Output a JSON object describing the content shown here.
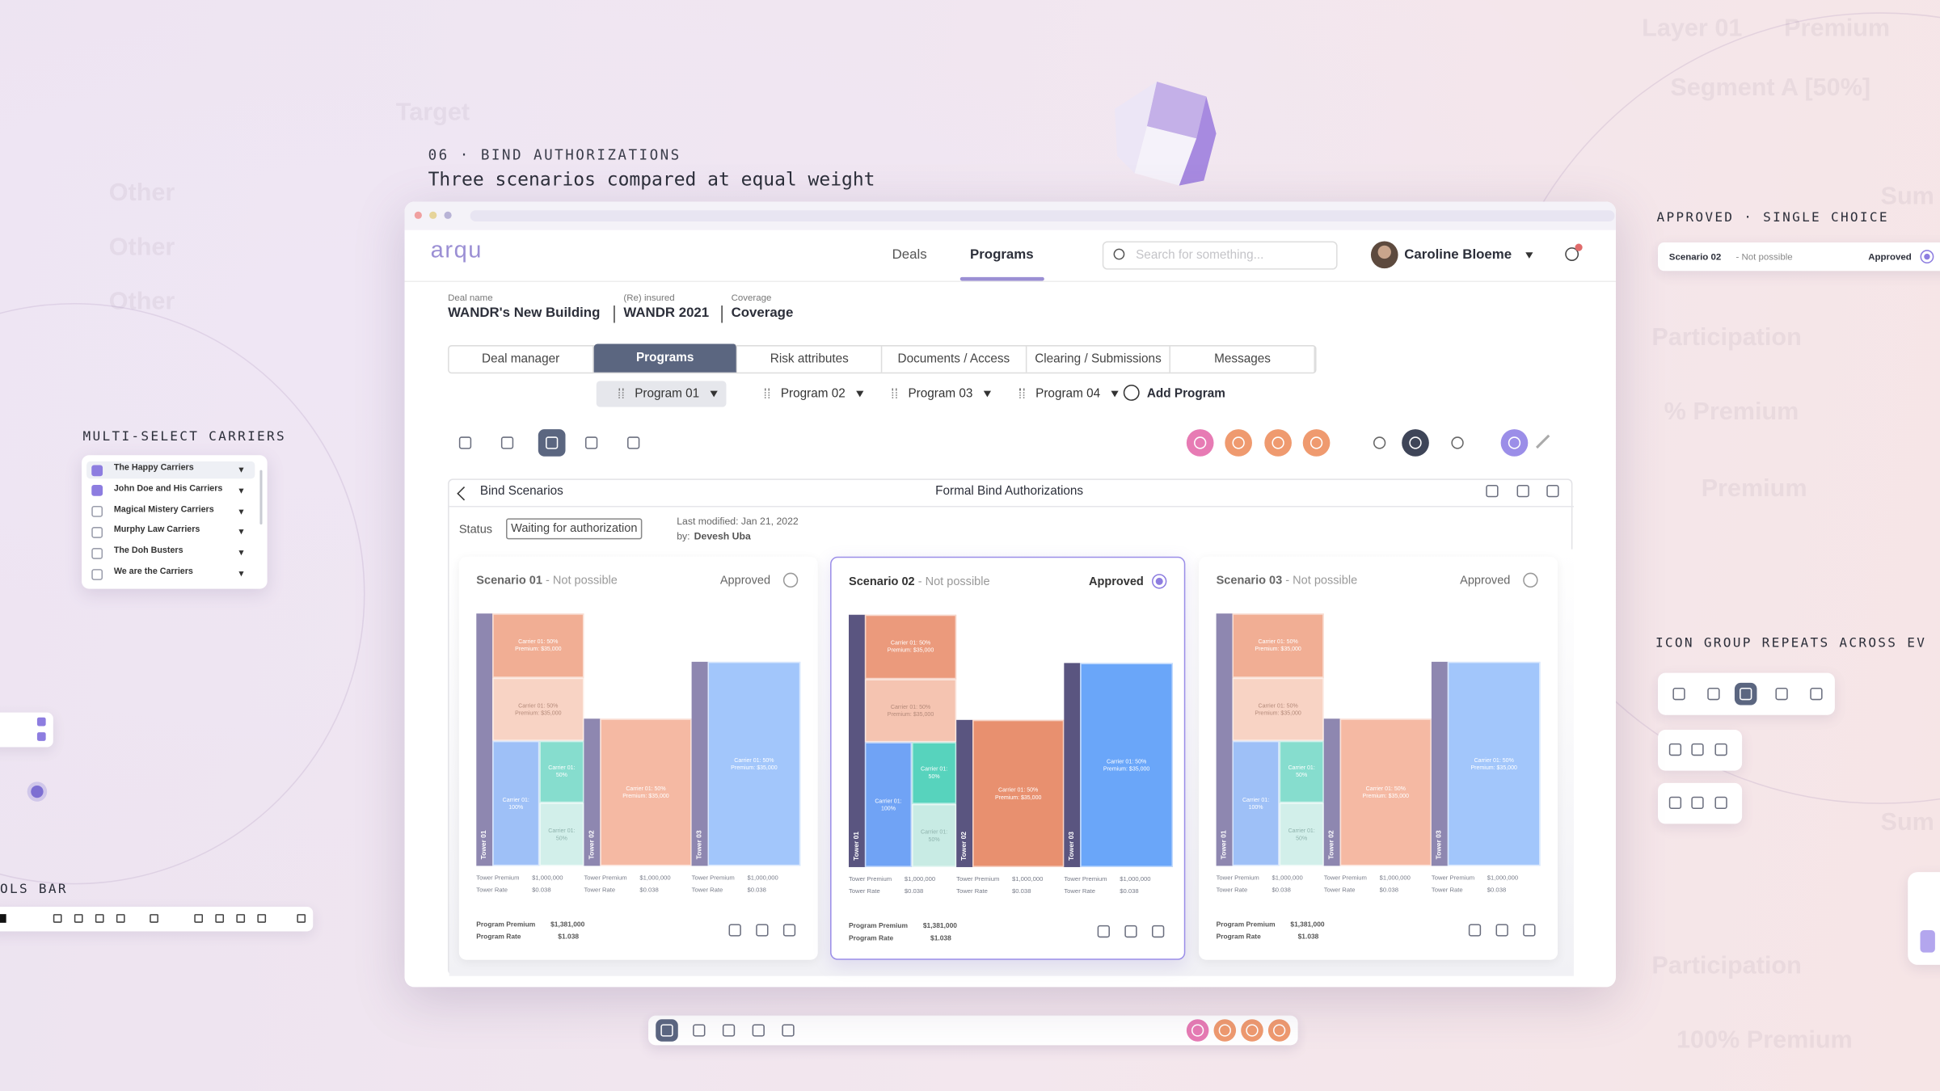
{
  "background_texts": [
    "Target",
    "Other",
    "Other",
    "Other",
    "Layer 01",
    "Premium",
    "Segment A [50%]",
    "Sum",
    "Participation",
    "% Premium",
    "Premium",
    "Sum",
    "Participation",
    "100% Premium"
  ],
  "section": {
    "eyebrow": "06 · BIND AUTHORIZATIONS",
    "title": "Three scenarios compared at equal weight"
  },
  "multi_select": {
    "label": "MULTI-SELECT CARRIERS",
    "carriers": [
      {
        "name": "The Happy Carriers",
        "checked": true
      },
      {
        "name": "John Doe and His Carriers",
        "checked": true
      },
      {
        "name": "Magical Mistery Carriers",
        "checked": false
      },
      {
        "name": "Murphy Law Carriers",
        "checked": false
      },
      {
        "name": "The Doh Busters",
        "checked": false
      },
      {
        "name": "We are the Carriers",
        "checked": false
      }
    ]
  },
  "tools_bar": {
    "label": "OLS BAR"
  },
  "single_choice": {
    "label": "APPROVED · SINGLE CHOICE",
    "scenario": "Scenario 02",
    "status": "- Not possible",
    "approved": "Approved"
  },
  "icon_group": {
    "label": "ICON GROUP REPEATS ACROSS EV"
  },
  "app": {
    "logo": "arqu",
    "nav": [
      "Deals",
      "Programs"
    ],
    "active_nav": 1,
    "search_placeholder": "Search for something...",
    "user": "Caroline Bloeme",
    "deal": [
      {
        "label": "Deal name",
        "value": "WANDR's New Building"
      },
      {
        "label": "(Re) insured",
        "value": "WANDR 2021"
      },
      {
        "label": "Coverage",
        "value": "Coverage"
      }
    ],
    "tabs": [
      "Deal manager",
      "Programs",
      "Risk attributes",
      "Documents / Access",
      "Clearing / Submissions",
      "Messages"
    ],
    "active_tab": 1,
    "programs": [
      "Program 01",
      "Program 02",
      "Program 03",
      "Program 04"
    ],
    "active_program": 0,
    "add_program": "Add Program",
    "panel": {
      "back": "Bind Scenarios",
      "title": "Formal Bind Authorizations",
      "status_label": "Status",
      "status": "Waiting for authorization",
      "modified": "Last modified: Jan 21, 2022",
      "by_label": "by:",
      "by": "Devesh Uba"
    }
  },
  "scenarios": [
    {
      "name": "Scenario 01",
      "status": "- Not possible",
      "approved_label": "Approved",
      "approved": false,
      "towers": [
        {
          "name": "Tower 01",
          "cells": [
            [
              "Carrier 01: 50%",
              "Premium: $35,000"
            ],
            [
              "Carrier 01: 50%",
              "Premium: $35,000"
            ],
            [
              "Carrier 01:",
              "100%"
            ],
            [
              "Carrier 01:",
              "50%"
            ],
            [
              "Carrier 01:",
              "50%"
            ]
          ],
          "premium_label": "Tower Premium",
          "premium": "$1,000,000",
          "rate_label": "Tower Rate",
          "rate": "$0.038"
        },
        {
          "name": "Tower 02",
          "cells": [
            [
              "Carrier 01: 50%",
              "Premium: $35,000"
            ]
          ],
          "premium_label": "Tower Premium",
          "premium": "$1,000,000",
          "rate_label": "Tower Rate",
          "rate": "$0.038"
        },
        {
          "name": "Tower 03",
          "cells": [
            [
              "Carrier 01: 50%",
              "Premium: $35,000"
            ]
          ],
          "premium_label": "Tower Premium",
          "premium": "$1,000,000",
          "rate_label": "Tower Rate",
          "rate": "$0.038"
        }
      ],
      "program_premium_label": "Program Premium",
      "program_premium": "$1,381,000",
      "program_rate_label": "Program Rate",
      "program_rate": "$1.038"
    },
    {
      "name": "Scenario 02",
      "status": "- Not possible",
      "approved_label": "Approved",
      "approved": true,
      "towers": [
        {
          "name": "Tower 01",
          "cells": [
            [
              "Carrier 01: 50%",
              "Premium: $35,000"
            ],
            [
              "Carrier 01: 50%",
              "Premium: $35,000"
            ],
            [
              "Carrier 01:",
              "100%"
            ],
            [
              "Carrier 01:",
              "50%"
            ],
            [
              "Carrier 01:",
              "50%"
            ]
          ],
          "premium_label": "Tower Premium",
          "premium": "$1,000,000",
          "rate_label": "Tower Rate",
          "rate": "$0.038"
        },
        {
          "name": "Tower 02",
          "cells": [
            [
              "Carrier 01: 50%",
              "Premium: $35,000"
            ]
          ],
          "premium_label": "Tower Premium",
          "premium": "$1,000,000",
          "rate_label": "Tower Rate",
          "rate": "$0.038"
        },
        {
          "name": "Tower 03",
          "cells": [
            [
              "Carrier 01: 50%",
              "Premium: $35,000"
            ]
          ],
          "premium_label": "Tower Premium",
          "premium": "$1,000,000",
          "rate_label": "Tower Rate",
          "rate": "$0.038"
        }
      ],
      "program_premium_label": "Program Premium",
      "program_premium": "$1,381,000",
      "program_rate_label": "Program Rate",
      "program_rate": "$1.038"
    },
    {
      "name": "Scenario 03",
      "status": "- Not possible",
      "approved_label": "Approved",
      "approved": false,
      "towers": [
        {
          "name": "Tower 01",
          "cells": [
            [
              "Carrier 01: 50%",
              "Premium: $35,000"
            ],
            [
              "Carrier 01: 50%",
              "Premium: $35,000"
            ],
            [
              "Carrier 01:",
              "100%"
            ],
            [
              "Carrier 01:",
              "50%"
            ],
            [
              "Carrier 01:",
              "50%"
            ]
          ],
          "premium_label": "Tower Premium",
          "premium": "$1,000,000",
          "rate_label": "Tower Rate",
          "rate": "$0.038"
        },
        {
          "name": "Tower 02",
          "cells": [
            [
              "Carrier 01: 50%",
              "Premium: $35,000"
            ]
          ],
          "premium_label": "Tower Premium",
          "premium": "$1,000,000",
          "rate_label": "Tower Rate",
          "rate": "$0.038"
        },
        {
          "name": "Tower 03",
          "cells": [
            [
              "Carrier 01: 50%",
              "Premium: $35,000"
            ]
          ],
          "premium_label": "Tower Premium",
          "premium": "$1,000,000",
          "rate_label": "Tower Rate",
          "rate": "$0.038"
        }
      ],
      "program_premium_label": "Program Premium",
      "program_premium": "$1,381,000",
      "program_rate_label": "Program Rate",
      "program_rate": "$1.038"
    }
  ]
}
